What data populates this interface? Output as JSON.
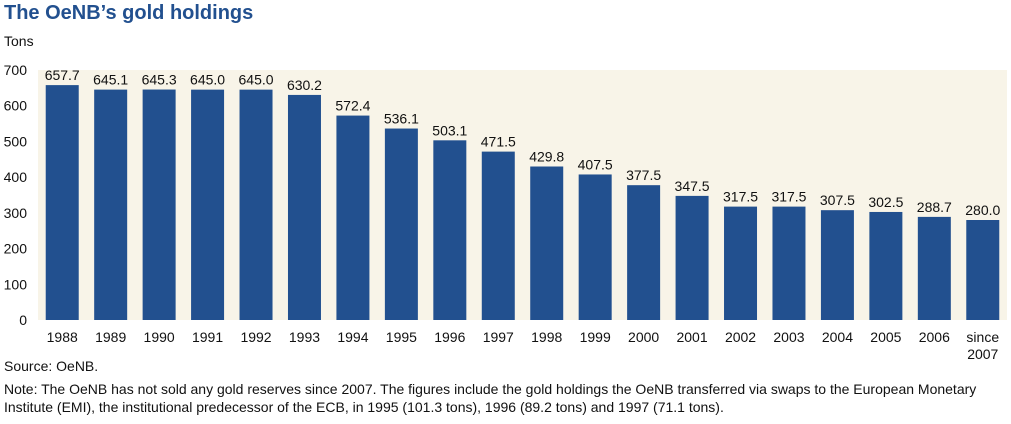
{
  "chart_data": {
    "type": "bar",
    "title": "The OeNB’s gold holdings",
    "ylabel": "Tons",
    "xlabel": "",
    "ylim": [
      0,
      700
    ],
    "yticks": [
      0,
      100,
      200,
      300,
      400,
      500,
      600,
      700
    ],
    "grid": false,
    "categories": [
      "1988",
      "1989",
      "1990",
      "1991",
      "1992",
      "1993",
      "1994",
      "1995",
      "1996",
      "1997",
      "1998",
      "1999",
      "2000",
      "2001",
      "2002",
      "2003",
      "2004",
      "2005",
      "2006",
      "since 2007"
    ],
    "values": [
      657.7,
      645.1,
      645.3,
      645.0,
      645.0,
      630.2,
      572.4,
      536.1,
      503.1,
      471.5,
      429.8,
      407.5,
      377.5,
      347.5,
      317.5,
      317.5,
      307.5,
      302.5,
      288.7,
      280.0
    ],
    "data_labels": [
      "657.7",
      "645.1",
      "645.3",
      "645.0",
      "645.0",
      "630.2",
      "572.4",
      "536.1",
      "503.1",
      "471.5",
      "429.8",
      "407.5",
      "377.5",
      "347.5",
      "317.5",
      "317.5",
      "307.5",
      "302.5",
      "288.7",
      "280.0"
    ],
    "colors": {
      "bar": "#22508f",
      "plot_background": "#f8f4e8",
      "title": "#22508f"
    },
    "source": "Source: OeNB.",
    "note": "Note: The OeNB has not sold any gold reserves since 2007. The figures include the gold holdings the OeNB transferred via swaps to the European Monetary Institute (EMI), the institutional predecessor of the ECB, in 1995 (101.3 tons), 1996 (89.2 tons) and 1997 (71.1 tons)."
  }
}
